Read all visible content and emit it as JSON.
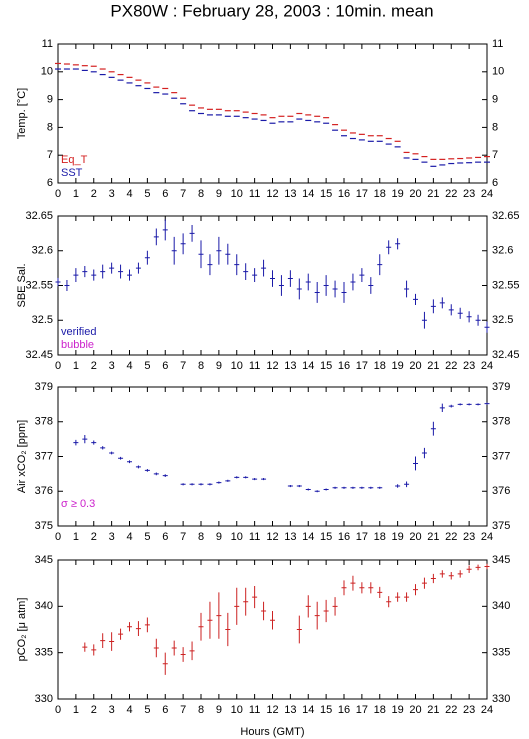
{
  "chart_data": [
    {
      "type": "scatter",
      "title": "PX80W : February 28, 2003 : 10min. mean",
      "ylabel": "Temp. [°C]",
      "marker": "dash",
      "x": [
        0,
        0.5,
        1,
        1.5,
        2,
        2.5,
        3,
        3.5,
        4,
        4.5,
        5,
        5.5,
        6,
        6.5,
        7,
        7.5,
        8,
        8.5,
        9,
        9.5,
        10,
        10.5,
        11,
        11.5,
        12,
        12.5,
        13,
        13.5,
        14,
        14.5,
        15,
        15.5,
        16,
        16.5,
        17,
        17.5,
        18,
        18.5,
        19,
        19.5,
        20,
        20.5,
        21,
        21.5,
        22,
        22.5,
        23,
        23.5,
        24
      ],
      "xlim": [
        0,
        24
      ],
      "xticks": [
        0,
        1,
        2,
        3,
        4,
        5,
        6,
        7,
        8,
        9,
        10,
        11,
        12,
        13,
        14,
        15,
        16,
        17,
        18,
        19,
        20,
        21,
        22,
        23,
        24
      ],
      "ylim": [
        6,
        11
      ],
      "yticks": [
        6,
        7,
        8,
        9,
        10,
        11
      ],
      "series": [
        {
          "name": "Eq_T",
          "color": "#d42020",
          "values": [
            10.3,
            10.28,
            10.25,
            10.22,
            10.2,
            10.1,
            10.0,
            9.9,
            9.8,
            9.7,
            9.6,
            9.45,
            9.4,
            9.25,
            9.05,
            8.8,
            8.7,
            8.65,
            8.65,
            8.6,
            8.6,
            8.55,
            8.5,
            8.45,
            8.35,
            8.4,
            8.4,
            8.5,
            8.45,
            8.4,
            8.35,
            8.1,
            7.9,
            7.8,
            7.75,
            7.7,
            7.7,
            7.6,
            7.5,
            7.1,
            7.05,
            6.95,
            6.85,
            6.85,
            6.87,
            6.88,
            6.9,
            6.92,
            6.95
          ]
        },
        {
          "name": "SST",
          "color": "#1a1aa8",
          "values": [
            10.1,
            10.1,
            10.1,
            10.05,
            10.0,
            9.9,
            9.8,
            9.7,
            9.6,
            9.5,
            9.4,
            9.25,
            9.2,
            9.05,
            8.85,
            8.6,
            8.5,
            8.45,
            8.45,
            8.4,
            8.4,
            8.35,
            8.3,
            8.25,
            8.15,
            8.2,
            8.2,
            8.3,
            8.25,
            8.2,
            8.15,
            7.9,
            7.7,
            7.6,
            7.55,
            7.5,
            7.5,
            7.4,
            7.3,
            6.9,
            6.85,
            6.75,
            6.6,
            6.65,
            6.7,
            6.72,
            6.73,
            6.75,
            6.75
          ]
        }
      ]
    },
    {
      "type": "scatter",
      "ylabel": "SBE Sal.",
      "marker": "cross",
      "x": [
        0,
        0.5,
        1,
        1.5,
        2,
        2.5,
        3,
        3.5,
        4,
        4.5,
        5,
        5.5,
        6,
        6.5,
        7,
        7.5,
        8,
        8.5,
        9,
        9.5,
        10,
        10.5,
        11,
        11.5,
        12,
        12.5,
        13,
        13.5,
        14,
        14.5,
        15,
        15.5,
        16,
        16.5,
        17,
        17.5,
        18,
        18.5,
        19,
        19.5,
        20,
        20.5,
        21,
        21.5,
        22,
        22.5,
        23,
        23.5,
        24
      ],
      "xlim": [
        0,
        24
      ],
      "xticks": [
        0,
        1,
        2,
        3,
        4,
        5,
        6,
        7,
        8,
        9,
        10,
        11,
        12,
        13,
        14,
        15,
        16,
        17,
        18,
        19,
        20,
        21,
        22,
        23,
        24
      ],
      "ylim": [
        32.45,
        32.65
      ],
      "yticks": [
        32.45,
        32.5,
        32.55,
        32.6,
        32.65
      ],
      "series": [
        {
          "name": "verified",
          "color": "#1a1aa8",
          "values": [
            32.555,
            32.55,
            32.565,
            32.57,
            32.565,
            32.57,
            32.575,
            32.57,
            32.565,
            32.575,
            32.59,
            32.62,
            32.63,
            32.6,
            32.61,
            32.625,
            32.595,
            32.58,
            32.6,
            32.595,
            32.58,
            32.57,
            32.565,
            32.575,
            32.56,
            32.55,
            32.56,
            32.545,
            32.555,
            32.54,
            32.55,
            32.545,
            32.54,
            32.555,
            32.565,
            32.55,
            32.58,
            32.605,
            32.61,
            32.545,
            32.53,
            32.5,
            32.52,
            32.525,
            32.515,
            32.51,
            32.505,
            32.5,
            32.49
          ],
          "errors": [
            0.006,
            0.008,
            0.01,
            0.008,
            0.008,
            0.01,
            0.008,
            0.01,
            0.008,
            0.008,
            0.01,
            0.012,
            0.015,
            0.02,
            0.015,
            0.012,
            0.02,
            0.015,
            0.02,
            0.015,
            0.015,
            0.012,
            0.01,
            0.012,
            0.012,
            0.015,
            0.012,
            0.015,
            0.012,
            0.015,
            0.015,
            0.012,
            0.015,
            0.012,
            0.01,
            0.012,
            0.015,
            0.01,
            0.008,
            0.012,
            0.008,
            0.012,
            0.01,
            0.008,
            0.008,
            0.008,
            0.008,
            0.008,
            0.008
          ]
        },
        {
          "name": "bubble",
          "color": "#cc22cc",
          "values": [
            null,
            null,
            null,
            null,
            null,
            null,
            null,
            null,
            null,
            null,
            null,
            null,
            null,
            null,
            null,
            null,
            null,
            null,
            null,
            null,
            null,
            null,
            null,
            null,
            null,
            null,
            null,
            null,
            null,
            null,
            null,
            null,
            null,
            null,
            null,
            null,
            null,
            null,
            null,
            null,
            null,
            null,
            null,
            null,
            null,
            null,
            null,
            null,
            null
          ]
        }
      ]
    },
    {
      "type": "scatter",
      "ylabel": "Air xCO₂ [ppm]",
      "marker": "cross",
      "annotation": "σ ≥ 0.3",
      "annotation_color": "#cc22cc",
      "x": [
        0,
        0.5,
        1,
        1.5,
        2,
        2.5,
        3,
        3.5,
        4,
        4.5,
        5,
        5.5,
        6,
        6.5,
        7,
        7.5,
        8,
        8.5,
        9,
        9.5,
        10,
        10.5,
        11,
        11.5,
        12,
        12.5,
        13,
        13.5,
        14,
        14.5,
        15,
        15.5,
        16,
        16.5,
        17,
        17.5,
        18,
        18.5,
        19,
        19.5,
        20,
        20.5,
        21,
        21.5,
        22,
        22.5,
        23,
        23.5,
        24
      ],
      "xlim": [
        0,
        24
      ],
      "xticks": [
        0,
        1,
        2,
        3,
        4,
        5,
        6,
        7,
        8,
        9,
        10,
        11,
        12,
        13,
        14,
        15,
        16,
        17,
        18,
        19,
        20,
        21,
        22,
        23,
        24
      ],
      "ylim": [
        375,
        379
      ],
      "yticks": [
        375,
        376,
        377,
        378,
        379
      ],
      "series": [
        {
          "name": "Air xCO₂",
          "color": "#1a1aa8",
          "values": [
            null,
            null,
            377.4,
            377.5,
            377.4,
            377.25,
            377.1,
            376.95,
            376.85,
            376.7,
            376.6,
            376.5,
            376.45,
            null,
            376.2,
            376.2,
            376.2,
            376.2,
            376.25,
            376.3,
            376.4,
            376.4,
            376.35,
            376.35,
            null,
            null,
            376.15,
            376.15,
            376.05,
            376.0,
            376.05,
            376.1,
            376.1,
            376.1,
            376.1,
            376.1,
            376.1,
            null,
            376.15,
            376.2,
            376.8,
            377.1,
            377.8,
            378.4,
            378.45,
            378.5,
            378.5,
            378.5,
            378.52
          ],
          "errors": [
            null,
            null,
            0.08,
            0.12,
            0.06,
            0.05,
            0.04,
            0.04,
            0.04,
            0.04,
            0.04,
            0.04,
            0.04,
            null,
            0.03,
            0.03,
            0.03,
            0.03,
            0.03,
            0.03,
            0.03,
            0.03,
            0.03,
            0.03,
            null,
            null,
            0.03,
            0.03,
            0.03,
            0.03,
            0.03,
            0.03,
            0.03,
            0.03,
            0.03,
            0.03,
            0.03,
            null,
            0.05,
            0.08,
            0.2,
            0.15,
            0.2,
            0.12,
            0.04,
            0.03,
            0.03,
            0.03,
            0.03
          ]
        }
      ]
    },
    {
      "type": "scatter",
      "ylabel": "pCO₂ [μ atm]",
      "xlabel": "Hours (GMT)",
      "marker": "cross",
      "x": [
        0,
        0.5,
        1,
        1.5,
        2,
        2.5,
        3,
        3.5,
        4,
        4.5,
        5,
        5.5,
        6,
        6.5,
        7,
        7.5,
        8,
        8.5,
        9,
        9.5,
        10,
        10.5,
        11,
        11.5,
        12,
        12.5,
        13,
        13.5,
        14,
        14.5,
        15,
        15.5,
        16,
        16.5,
        17,
        17.5,
        18,
        18.5,
        19,
        19.5,
        20,
        20.5,
        21,
        21.5,
        22,
        22.5,
        23,
        23.5,
        24
      ],
      "xlim": [
        0,
        24
      ],
      "xticks": [
        0,
        1,
        2,
        3,
        4,
        5,
        6,
        7,
        8,
        9,
        10,
        11,
        12,
        13,
        14,
        15,
        16,
        17,
        18,
        19,
        20,
        21,
        22,
        23,
        24
      ],
      "ylim": [
        330,
        345
      ],
      "yticks": [
        330,
        335,
        340,
        345
      ],
      "series": [
        {
          "name": "pCO₂",
          "color": "#cc2222",
          "values": [
            null,
            null,
            null,
            335.6,
            335.3,
            336.3,
            336.2,
            337.0,
            337.8,
            337.6,
            338.0,
            335.5,
            333.8,
            335.5,
            334.8,
            335.2,
            337.8,
            338.5,
            339.0,
            337.5,
            340.0,
            340.5,
            341.0,
            339.5,
            338.5,
            null,
            null,
            337.5,
            340.0,
            339.0,
            339.5,
            340.0,
            342.0,
            342.5,
            342.0,
            342.0,
            341.5,
            340.5,
            341.0,
            341.0,
            341.8,
            342.5,
            343.0,
            343.5,
            343.3,
            343.5,
            344.0,
            344.2,
            344.3
          ],
          "errors": [
            null,
            null,
            null,
            0.5,
            0.6,
            0.8,
            1.0,
            0.6,
            0.5,
            0.8,
            0.8,
            1.0,
            1.2,
            0.8,
            0.8,
            1.0,
            1.5,
            2.0,
            2.5,
            1.8,
            2.0,
            1.5,
            1.2,
            1.0,
            1.0,
            null,
            null,
            1.5,
            1.2,
            1.5,
            1.2,
            1.0,
            0.8,
            0.8,
            0.6,
            0.6,
            0.6,
            0.6,
            0.5,
            0.5,
            0.6,
            0.6,
            0.5,
            0.4,
            0.4,
            0.4,
            0.4,
            0.3,
            0.3
          ]
        }
      ]
    }
  ]
}
